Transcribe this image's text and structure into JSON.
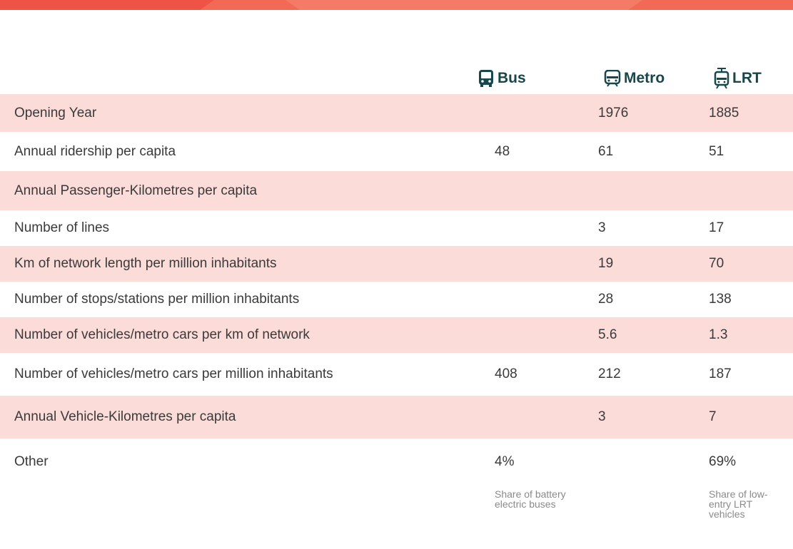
{
  "header": {
    "columns": [
      "Bus",
      "Metro",
      "LRT"
    ]
  },
  "table": {
    "rows": [
      {
        "label": "Opening Year",
        "cells": [
          null,
          1976,
          1885
        ]
      },
      {
        "label": "Annual ridership per capita",
        "cells": [
          48,
          61,
          51
        ]
      },
      {
        "label": "Annual Passenger-Kilometres per capita",
        "cells": [
          null,
          null,
          null
        ]
      },
      {
        "label": "Number of lines",
        "cells": [
          null,
          3,
          17
        ]
      },
      {
        "label": "Km of network length per million inhabitants",
        "cells": [
          null,
          19,
          70
        ]
      },
      {
        "label": "Number of stops/stations per million inhabitants",
        "cells": [
          null,
          28,
          138
        ]
      },
      {
        "label": "Number of vehicles/metro cars per km of network",
        "cells": [
          null,
          5.6,
          1.3
        ]
      },
      {
        "label": "Number of vehicles/metro cars per million inhabitants",
        "cells": [
          408,
          212,
          187
        ]
      },
      {
        "label": "Annual Vehicle-Kilometres per capita",
        "cells": [
          null,
          3,
          7
        ]
      },
      {
        "label": "Other",
        "cells": [
          "4%",
          null,
          "69%"
        ]
      }
    ]
  },
  "notes": [
    "Share of battery electric buses",
    null,
    "Share of low-entry LRT vehicles"
  ]
}
